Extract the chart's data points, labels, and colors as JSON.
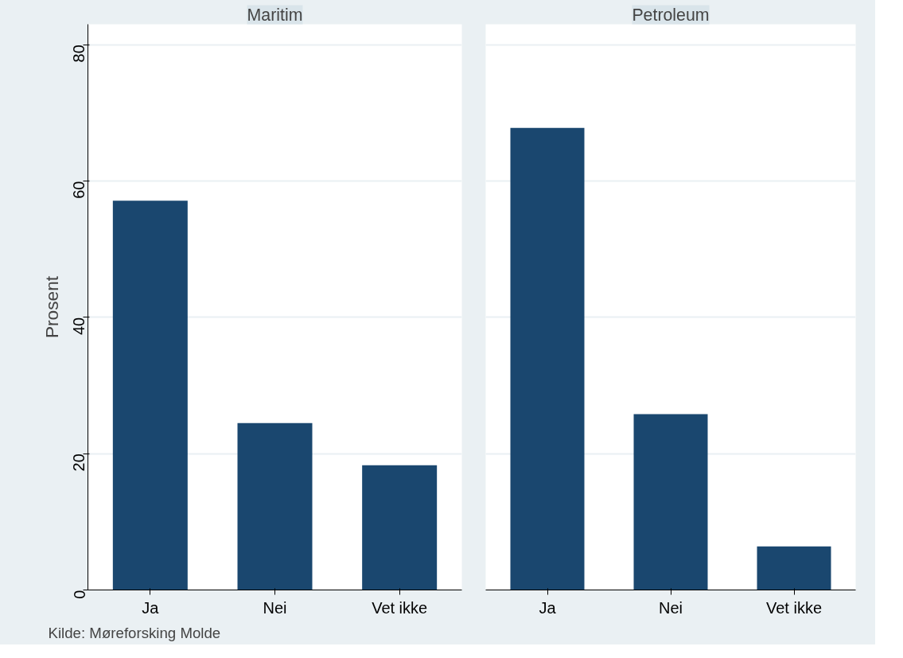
{
  "chart_data": [
    {
      "type": "bar",
      "title": "Maritim",
      "ylabel": "Prosent",
      "categories": [
        "Ja",
        "Nei",
        "Vet ikke"
      ],
      "values": [
        57.1,
        24.5,
        18.3
      ],
      "color": "#1a476f",
      "ylim": [
        0,
        83
      ],
      "yticks": [
        0,
        20,
        40,
        60,
        80
      ],
      "grid": "y",
      "annotations": [
        "Kilde: Møreforsking Molde"
      ]
    },
    {
      "type": "bar",
      "title": "Petroleum",
      "categories": [
        "Ja",
        "Nei",
        "Vet ikke"
      ],
      "values": [
        67.8,
        25.8,
        6.4
      ],
      "color": "#1a476f",
      "ylim": [
        0,
        83
      ],
      "yticks": [
        0,
        20,
        40,
        60,
        80
      ],
      "grid": "y",
      "tick_labels": "x"
    }
  ]
}
